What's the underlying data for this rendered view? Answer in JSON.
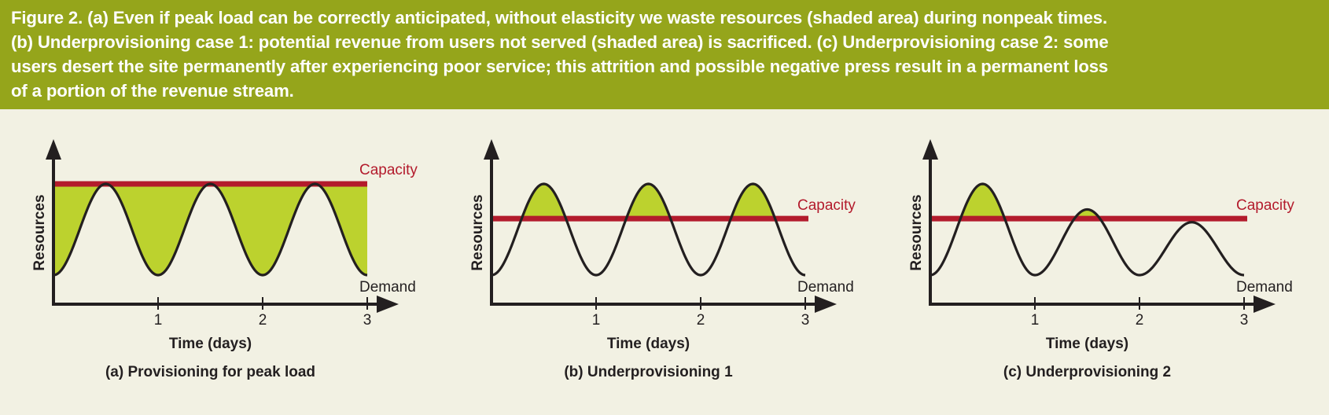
{
  "caption": {
    "line1": "Figure 2. (a) Even if peak load can be correctly anticipated, without elasticity we waste resources (shaded area) during nonpeak times.",
    "line2": "(b) Underprovisioning case 1: potential revenue from users not served (shaded area) is sacrificed. (c) Underprovisioning case 2: some",
    "line3": "users desert the site permanently after experiencing poor service; this attrition and possible negative press result in a permanent loss",
    "line4": "of a portion of the revenue stream."
  },
  "colors": {
    "caption_background": "#95a51b",
    "figure_background": "#f2f1e3",
    "capacity_line": "#b31b2c",
    "shaded_area": "#bcd22e",
    "demand_line": "#231f20"
  },
  "panels": [
    {
      "id": "a",
      "title": "(a) Provisioning for peak load",
      "ylabel": "Resources",
      "xlabel": "Time (days)",
      "x_ticks": [
        "1",
        "2",
        "3"
      ],
      "capacity_label": "Capacity",
      "demand_label": "Demand",
      "case": "overprovision",
      "capacity_level": 1.0,
      "demand_peaks": [
        1.0,
        1.0,
        1.0
      ]
    },
    {
      "id": "b",
      "title": "(b) Underprovisioning 1",
      "ylabel": "Resources",
      "xlabel": "Time (days)",
      "x_ticks": [
        "1",
        "2",
        "3"
      ],
      "capacity_label": "Capacity",
      "demand_label": "Demand",
      "case": "underprovision",
      "capacity_level": 0.62,
      "demand_peaks": [
        1.0,
        1.0,
        1.0
      ]
    },
    {
      "id": "c",
      "title": "(c) Underprovisioning 2",
      "ylabel": "Resources",
      "xlabel": "Time (days)",
      "x_ticks": [
        "1",
        "2",
        "3"
      ],
      "capacity_label": "Capacity",
      "demand_label": "Demand",
      "case": "underprovision",
      "capacity_level": 0.62,
      "demand_peaks": [
        1.0,
        0.72,
        0.58
      ]
    }
  ]
}
